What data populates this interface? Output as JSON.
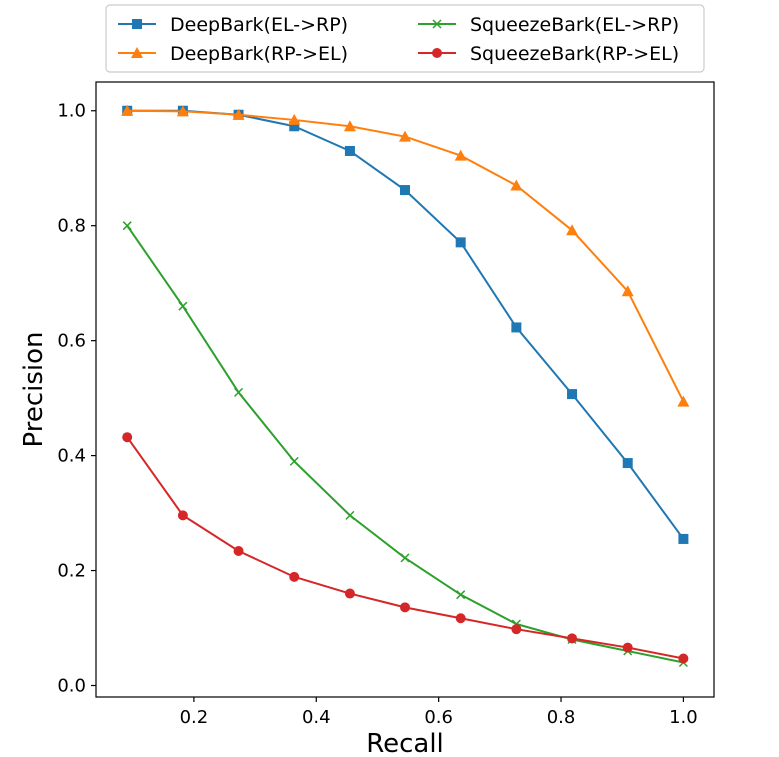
{
  "chart_data": {
    "type": "line",
    "title": "",
    "xlabel": "Recall",
    "ylabel": "Precision",
    "xlim": [
      0.04,
      1.05
    ],
    "ylim": [
      -0.02,
      1.05
    ],
    "grid": false,
    "legend_position": "top",
    "x_ticks": [
      {
        "value": 0.2,
        "label": "0.2"
      },
      {
        "value": 0.4,
        "label": "0.4"
      },
      {
        "value": 0.6,
        "label": "0.6"
      },
      {
        "value": 0.8,
        "label": "0.8"
      },
      {
        "value": 1.0,
        "label": "1.0"
      }
    ],
    "y_ticks": [
      {
        "value": 0.0,
        "label": "0.0"
      },
      {
        "value": 0.2,
        "label": "0.2"
      },
      {
        "value": 0.4,
        "label": "0.4"
      },
      {
        "value": 0.6,
        "label": "0.6"
      },
      {
        "value": 0.8,
        "label": "0.8"
      },
      {
        "value": 1.0,
        "label": "1.0"
      }
    ],
    "x": [
      0.091,
      0.182,
      0.273,
      0.364,
      0.455,
      0.545,
      0.636,
      0.727,
      0.818,
      0.909,
      1.0
    ],
    "series": [
      {
        "name": "DeepBark(EL->RP)",
        "color": "#1f77b4",
        "marker": "square",
        "values": [
          1.0,
          1.0,
          0.993,
          0.973,
          0.93,
          0.862,
          0.771,
          0.623,
          0.507,
          0.387,
          0.255
        ]
      },
      {
        "name": "DeepBark(RP->EL)",
        "color": "#ff7f0e",
        "marker": "triangle",
        "values": [
          1.0,
          0.999,
          0.993,
          0.984,
          0.973,
          0.955,
          0.922,
          0.87,
          0.792,
          0.686,
          0.494
        ]
      },
      {
        "name": "SqueezeBark(EL->RP)",
        "color": "#2ca02c",
        "marker": "x",
        "values": [
          0.8,
          0.66,
          0.51,
          0.39,
          0.296,
          0.222,
          0.158,
          0.107,
          0.08,
          0.06,
          0.04
        ]
      },
      {
        "name": "SqueezeBark(RP->EL)",
        "color": "#d62728",
        "marker": "circle",
        "values": [
          0.432,
          0.296,
          0.234,
          0.189,
          0.16,
          0.136,
          0.117,
          0.098,
          0.082,
          0.066,
          0.047
        ]
      }
    ]
  }
}
